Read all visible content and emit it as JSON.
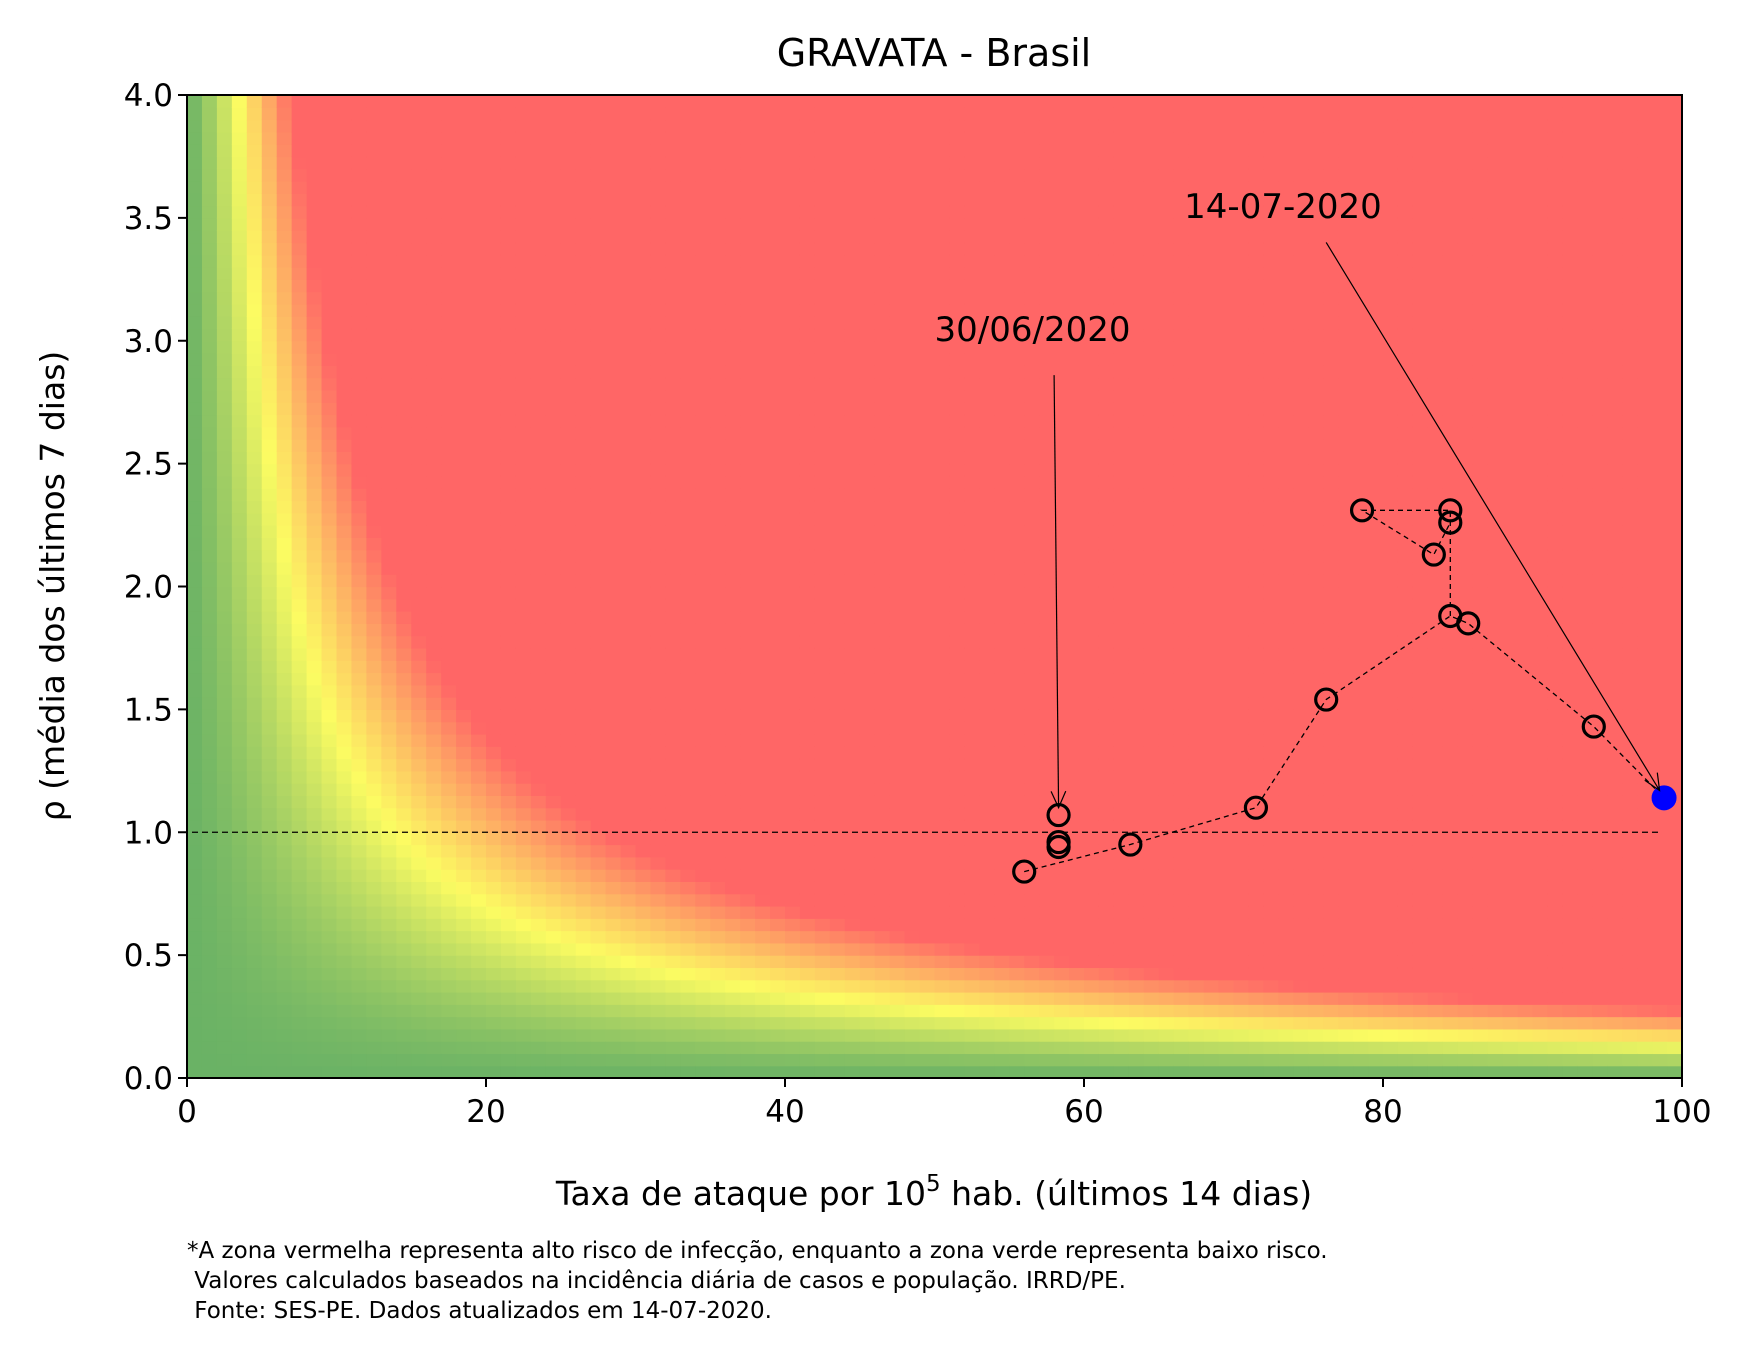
{
  "chart_data": {
    "type": "scatter",
    "title": "GRAVATA - Brasil",
    "xlabel": {
      "text": "Taxa de ataque por 10",
      "sup": "5",
      "rest": " hab. (últimos 14 dias)"
    },
    "ylabel": "ρ (média dos últimos 7 dias)",
    "xlim": [
      0,
      100
    ],
    "ylim": [
      0,
      4
    ],
    "x_ticks": [
      0,
      20,
      40,
      60,
      80,
      100
    ],
    "x_tick_labels": [
      "0",
      "20",
      "40",
      "60",
      "80",
      "100"
    ],
    "y_ticks": [
      0,
      0.5,
      1.0,
      1.5,
      2.0,
      2.5,
      3.0,
      3.5,
      4.0
    ],
    "y_tick_labels": [
      "0.0",
      "0.5",
      "1.0",
      "1.5",
      "2.0",
      "2.5",
      "3.0",
      "3.5",
      "4.0"
    ],
    "grid": false,
    "background": "risk heatmap: green (low risk) to yellow to red (high risk) as rate × ρ increases",
    "colors": {
      "low": "#6ab265",
      "mid": "#fcfc62",
      "high": "#ff6666",
      "last_point": "#0000ff",
      "marker_edge": "#000000"
    },
    "reference_line": {
      "y": 1.0,
      "style": "dashed"
    },
    "series": [
      {
        "points": [
          {
            "x": 56.0,
            "y": 0.84
          },
          {
            "x": 58.3,
            "y": 0.94
          },
          {
            "x": 58.3,
            "y": 0.96
          },
          {
            "x": 58.3,
            "y": 1.07
          },
          {
            "x": 63.1,
            "y": 0.95
          },
          {
            "x": 71.5,
            "y": 1.1
          },
          {
            "x": 76.2,
            "y": 1.54
          },
          {
            "x": 84.5,
            "y": 1.88
          },
          {
            "x": 85.7,
            "y": 1.85
          },
          {
            "x": 84.5,
            "y": 2.26
          },
          {
            "x": 83.4,
            "y": 2.13
          },
          {
            "x": 78.6,
            "y": 2.31
          },
          {
            "x": 84.5,
            "y": 2.31
          }
        ],
        "path_order": [
          0,
          4,
          5,
          6,
          7,
          8,
          11,
          12,
          9,
          10,
          7,
          8,
          13,
          14
        ],
        "trail_points": [
          {
            "x": 94.1,
            "y": 1.43
          },
          {
            "x": 98.8,
            "y": 1.14
          }
        ]
      }
    ],
    "path": [
      {
        "x": 56.0,
        "y": 0.84
      },
      {
        "x": 63.1,
        "y": 0.95
      },
      {
        "x": 71.5,
        "y": 1.1
      },
      {
        "x": 76.2,
        "y": 1.54
      },
      {
        "x": 84.5,
        "y": 1.88
      },
      {
        "x": 85.7,
        "y": 1.85
      },
      {
        "x": 94.1,
        "y": 1.43
      },
      {
        "x": 98.8,
        "y": 1.14
      }
    ],
    "loop_path": [
      {
        "x": 84.5,
        "y": 1.88
      },
      {
        "x": 84.5,
        "y": 2.26
      },
      {
        "x": 84.5,
        "y": 2.31
      },
      {
        "x": 78.6,
        "y": 2.31
      },
      {
        "x": 83.4,
        "y": 2.13
      },
      {
        "x": 84.5,
        "y": 2.26
      }
    ],
    "markers": [
      {
        "x": 56.0,
        "y": 0.84
      },
      {
        "x": 58.3,
        "y": 0.94
      },
      {
        "x": 58.3,
        "y": 0.96
      },
      {
        "x": 58.3,
        "y": 1.07
      },
      {
        "x": 63.1,
        "y": 0.95
      },
      {
        "x": 71.5,
        "y": 1.1
      },
      {
        "x": 76.2,
        "y": 1.54
      },
      {
        "x": 84.5,
        "y": 1.88
      },
      {
        "x": 85.7,
        "y": 1.85
      },
      {
        "x": 84.5,
        "y": 2.26
      },
      {
        "x": 84.5,
        "y": 2.31
      },
      {
        "x": 78.6,
        "y": 2.31
      },
      {
        "x": 83.4,
        "y": 2.13
      },
      {
        "x": 94.1,
        "y": 1.43
      }
    ],
    "last_point": {
      "x": 98.8,
      "y": 1.14
    },
    "annotations": [
      {
        "text": "30/06/2020",
        "text_x": 50,
        "text_y": 3.0,
        "arrow_from": {
          "x": 58.0,
          "y": 2.86
        },
        "arrow_to": {
          "x": 58.3,
          "y": 1.1
        }
      },
      {
        "text": "14-07-2020",
        "text_x": 66.7,
        "text_y": 3.5,
        "arrow_from": {
          "x": 76.2,
          "y": 3.4
        },
        "arrow_to": {
          "x": 98.5,
          "y": 1.17
        }
      }
    ],
    "footnote": [
      "*A zona vermelha representa alto risco de infecção, enquanto a zona verde representa baixo risco.",
      " Valores calculados baseados na incidência diária de casos e população. IRRD/PE.",
      " Fonte: SES-PE. Dados atualizados em 14-07-2020."
    ]
  }
}
